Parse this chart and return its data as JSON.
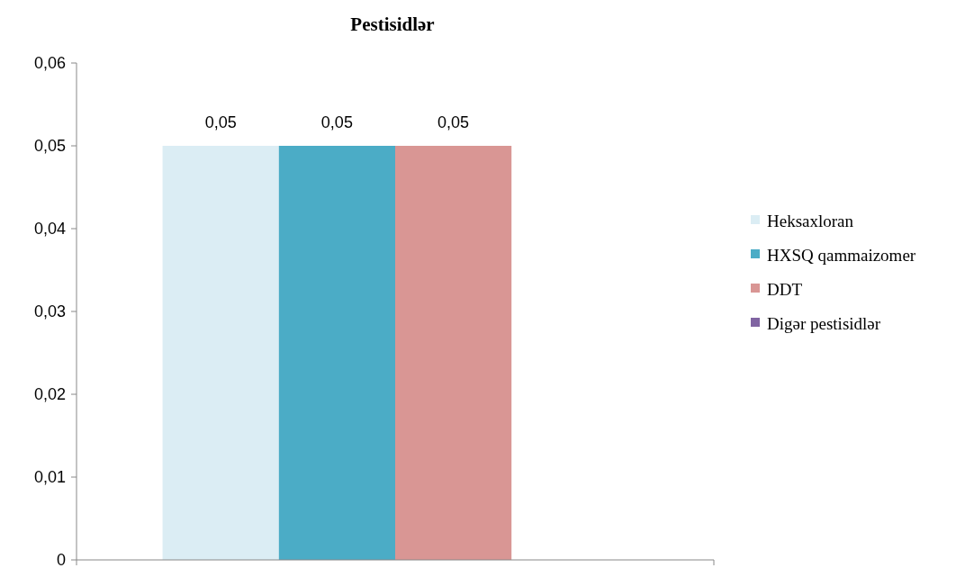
{
  "chart_data": {
    "type": "bar",
    "title": "Pestisidlər",
    "categories": [
      null
    ],
    "series": [
      {
        "name": "Heksaxloran",
        "color": "#dbedf4",
        "values": [
          0.05
        ],
        "value_labels": [
          "0,05"
        ]
      },
      {
        "name": "HXSQ qammaizomer",
        "color": "#4bacc6",
        "values": [
          0.05
        ],
        "value_labels": [
          "0,05"
        ]
      },
      {
        "name": "DDT",
        "color": "#d99694",
        "values": [
          0.05
        ],
        "value_labels": [
          "0,05"
        ]
      },
      {
        "name": "Digər pestisidlər",
        "color": "#8064a2",
        "values": [
          null
        ]
      }
    ],
    "ylim": [
      0,
      0.06
    ],
    "yticks": [
      0,
      {
        "value": 0.01,
        "label": "0,01"
      },
      {
        "value": 0.02,
        "label": "0,02"
      },
      {
        "value": 0.03,
        "label": "0,03"
      },
      {
        "value": 0.04,
        "label": "0,04"
      },
      {
        "value": 0.05,
        "label": "0,05"
      },
      {
        "value": 0.06,
        "label": "0,06"
      }
    ],
    "grid": false,
    "legend": "right"
  }
}
